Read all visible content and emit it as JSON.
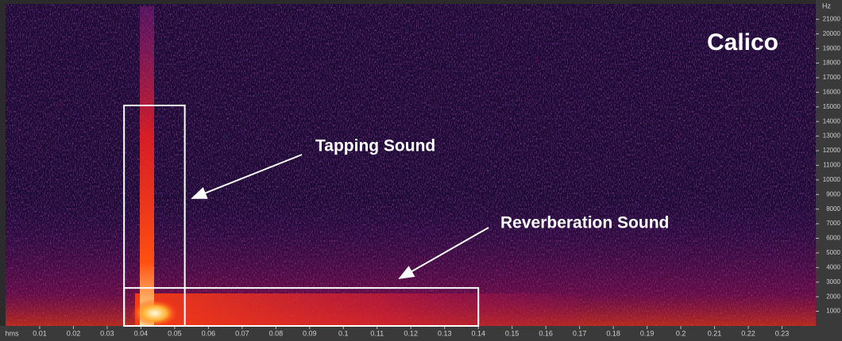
{
  "chart_data": {
    "type": "spectrogram",
    "title": "Calico",
    "x_label": "hms",
    "y_label": "Hz",
    "xlim": [
      0,
      0.24
    ],
    "xticks": [
      0.01,
      0.02,
      0.03,
      0.04,
      0.05,
      0.06,
      0.07,
      0.08,
      0.09,
      0.1,
      0.11,
      0.12,
      0.13,
      0.14,
      0.15,
      0.16,
      0.17,
      0.18,
      0.19,
      0.2,
      0.21,
      0.22,
      0.23
    ],
    "ylim": [
      0,
      22050
    ],
    "yticks": [
      1000,
      2000,
      3000,
      4000,
      5000,
      6000,
      7000,
      8000,
      9000,
      10000,
      11000,
      12000,
      13000,
      14000,
      15000,
      16000,
      17000,
      18000,
      19000,
      20000,
      21000
    ],
    "regions": [
      {
        "label": "Tapping Sound",
        "x": [
          0.035,
          0.053
        ],
        "y": [
          0,
          15100
        ],
        "color": "#ffffff"
      },
      {
        "label": "Reverberation Sound",
        "x": [
          0.035,
          0.14
        ],
        "y": [
          0,
          2600
        ],
        "color": "#ffffff"
      }
    ]
  }
}
